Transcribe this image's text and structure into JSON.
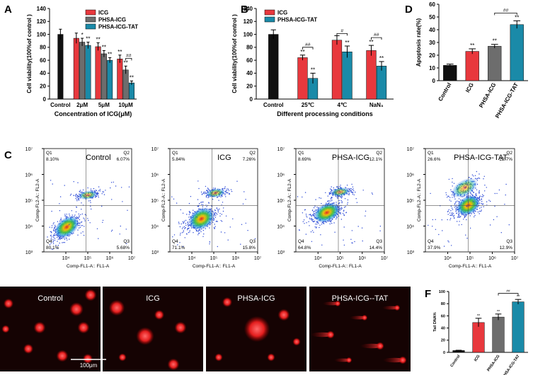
{
  "chart_data": [
    {
      "type": "bar",
      "panel_label": "A",
      "y_label": "Cell viability(100%of control )",
      "x_label": "Concentration of ICG(μM)",
      "categories": [
        "Control",
        "2μM",
        "5μM",
        "10μM"
      ],
      "series": [
        {
          "color": "#111111",
          "values": [
            100,
            null,
            null,
            null
          ],
          "errors": [
            8,
            null,
            null,
            null
          ]
        },
        {
          "name": "ICG",
          "color": "#e8383d",
          "values": [
            null,
            94,
            81,
            62
          ],
          "errors": [
            null,
            8,
            6,
            6
          ],
          "sig": [
            null,
            null,
            "**",
            "**"
          ]
        },
        {
          "name": "PHSA-ICG",
          "color": "#6d6d6d",
          "values": [
            null,
            88,
            70,
            45
          ],
          "errors": [
            null,
            6,
            5,
            6
          ],
          "sig": [
            null,
            "*",
            "**",
            "**"
          ]
        },
        {
          "name": "PHSA-ICG-TAT",
          "color": "#1a8aa8",
          "values": [
            null,
            83,
            60,
            25
          ],
          "errors": [
            null,
            5,
            4,
            3
          ],
          "sig": [
            null,
            "**",
            "**",
            "**"
          ]
        }
      ],
      "ylim": [
        0,
        140
      ],
      "yticks": [
        0,
        20,
        40,
        60,
        80,
        100,
        120,
        140
      ],
      "legend": "upper right",
      "brackets": [
        {
          "label": "##"
        }
      ]
    },
    {
      "type": "bar",
      "panel_label": "B",
      "y_label": "Cell viability(100%of control )",
      "x_label": "Different processing conditions",
      "categories": [
        "Control",
        "25℃",
        "4℃",
        "NaN₃"
      ],
      "series": [
        {
          "color": "#111111",
          "values": [
            100,
            null,
            null,
            null
          ],
          "errors": [
            7,
            null,
            null,
            null
          ]
        },
        {
          "name": "ICG",
          "color": "#e8383d",
          "values": [
            null,
            64,
            91,
            75
          ],
          "errors": [
            null,
            4,
            7,
            8
          ],
          "sig": [
            null,
            "**",
            null,
            "**"
          ]
        },
        {
          "name": "PHSA-ICG-TAT",
          "color": "#1a8aa8",
          "values": [
            null,
            32,
            73,
            51
          ],
          "errors": [
            null,
            8,
            9,
            7
          ],
          "sig": [
            null,
            "**",
            "**",
            "**"
          ]
        }
      ],
      "ylim": [
        0,
        140
      ],
      "yticks": [
        0,
        20,
        40,
        60,
        80,
        100,
        120,
        140
      ],
      "legend": "upper left",
      "brackets": [
        {
          "label": "##"
        },
        {
          "label": "#"
        },
        {
          "label": "##"
        }
      ]
    },
    {
      "type": "bar",
      "panel_label": "D",
      "y_label": "Apoptosis rate(%)",
      "categories": [
        "Control",
        "ICG",
        "PHSA-ICG",
        "PHSA-ICG-TAT"
      ],
      "values": [
        12,
        23,
        27,
        44
      ],
      "errors": [
        1,
        2,
        1.5,
        3
      ],
      "sig": [
        null,
        "**",
        "**",
        "**"
      ],
      "colors": [
        "#111111",
        "#e8383d",
        "#6d6d6d",
        "#1a8aa8"
      ],
      "ylim": [
        0,
        60
      ],
      "yticks": [
        0,
        10,
        20,
        30,
        40,
        50,
        60
      ],
      "brackets": [
        {
          "label": "##"
        }
      ]
    },
    {
      "type": "flow",
      "panel_label": "C",
      "title": "Control",
      "x_label": "Comp-FL1-A:: FL1-A",
      "y_label": "Comp-FL2-A:: FL2-A",
      "log": true,
      "xlim": [
        1000,
        10000000
      ],
      "ylim": [
        1000,
        10000000
      ],
      "xticks": [
        {
          "value": 10000,
          "label": "10⁴"
        },
        {
          "value": 100000,
          "label": "10⁵"
        },
        {
          "value": 1000000,
          "label": "10⁶"
        },
        {
          "value": 10000000,
          "label": "10⁷"
        }
      ],
      "yticks": [
        {
          "value": 1000,
          "label": "10³"
        },
        {
          "value": 10000,
          "label": "10⁴"
        },
        {
          "value": 100000,
          "label": "10⁵"
        },
        {
          "value": 1000000,
          "label": "10⁶"
        },
        {
          "value": 10000000,
          "label": "10⁷"
        }
      ],
      "quadrants": [
        {
          "name": "Q1",
          "text": "8.10%"
        },
        {
          "name": "Q2",
          "text": "6.07%"
        },
        {
          "name": "Q3",
          "text": "5.68%"
        },
        {
          "name": "Q4",
          "text": "80.1%"
        }
      ]
    },
    {
      "type": "flow",
      "title": "ICG",
      "x_label": "Comp-FL1-A:: FL1-A",
      "y_label": "Comp-FL2-A:: FL2-A",
      "log": true,
      "xlim": [
        1000,
        10000000
      ],
      "ylim": [
        1000,
        10000000
      ],
      "xticks": [
        {
          "value": 10000,
          "label": "10⁴"
        },
        {
          "value": 100000,
          "label": "10⁵"
        },
        {
          "value": 1000000,
          "label": "10⁶"
        },
        {
          "value": 10000000,
          "label": "10⁷"
        }
      ],
      "yticks": [
        {
          "value": 1000,
          "label": "10³"
        },
        {
          "value": 10000,
          "label": "10⁴"
        },
        {
          "value": 100000,
          "label": "10⁵"
        },
        {
          "value": 1000000,
          "label": "10⁶"
        },
        {
          "value": 10000000,
          "label": "10⁷"
        }
      ],
      "quadrants": [
        {
          "name": "Q1",
          "text": "5.84%"
        },
        {
          "name": "Q2",
          "text": "7.26%"
        },
        {
          "name": "Q3",
          "text": "15.8%"
        },
        {
          "name": "Q4",
          "text": "71.1%"
        }
      ]
    },
    {
      "type": "flow",
      "title": "PHSA-ICG",
      "x_label": "Comp-FL1-A:: FL1-A",
      "y_label": "Comp-FL2-A:: FL2-A",
      "log": true,
      "xlim": [
        1000,
        10000000
      ],
      "ylim": [
        1000,
        10000000
      ],
      "xticks": [
        {
          "value": 10000,
          "label": "10⁴"
        },
        {
          "value": 100000,
          "label": "10⁵"
        },
        {
          "value": 1000000,
          "label": "10⁶"
        },
        {
          "value": 10000000,
          "label": "10⁷"
        }
      ],
      "yticks": [
        {
          "value": 1000,
          "label": "10³"
        },
        {
          "value": 10000,
          "label": "10⁴"
        },
        {
          "value": 100000,
          "label": "10⁵"
        },
        {
          "value": 1000000,
          "label": "10⁶"
        },
        {
          "value": 10000000,
          "label": "10⁷"
        }
      ],
      "quadrants": [
        {
          "name": "Q1",
          "text": "8.69%"
        },
        {
          "name": "Q2",
          "text": "12.1%"
        },
        {
          "name": "Q3",
          "text": "14.4%"
        },
        {
          "name": "Q4",
          "text": "64.8%"
        }
      ]
    },
    {
      "type": "flow",
      "title": "PHSA-ICG-TAT",
      "x_label": "Comp-FL1-A:: FL1-A",
      "y_label": "Comp-FL2-A:: FL2-A",
      "log": true,
      "xlim": [
        1000,
        10000000
      ],
      "ylim": [
        1000,
        10000000
      ],
      "xticks": [
        {
          "value": 10000,
          "label": "10⁴"
        },
        {
          "value": 100000,
          "label": "10⁵"
        },
        {
          "value": 1000000,
          "label": "10⁶"
        },
        {
          "value": 10000000,
          "label": "10⁷"
        }
      ],
      "yticks": [
        {
          "value": 1000,
          "label": "10³"
        },
        {
          "value": 10000,
          "label": "10⁴"
        },
        {
          "value": 100000,
          "label": "10⁵"
        },
        {
          "value": 1000000,
          "label": "10⁶"
        },
        {
          "value": 10000000,
          "label": "10⁷"
        }
      ],
      "quadrants": [
        {
          "name": "Q1",
          "text": "26.6%"
        },
        {
          "name": "Q2",
          "text": "22.7%"
        },
        {
          "name": "Q3",
          "text": "12.9%"
        },
        {
          "name": "Q4",
          "text": "37.9%"
        }
      ]
    },
    {
      "type": "bar",
      "panel_label": "F",
      "y_label": "Tail DNA%",
      "categories": [
        "Control",
        "ICG",
        "PHSA-ICG",
        "PHSA-ICG-TAT"
      ],
      "values": [
        3,
        49,
        58,
        83
      ],
      "errors": [
        0.5,
        7,
        5,
        4
      ],
      "sig": [
        null,
        "**",
        "**",
        "**"
      ],
      "colors": [
        "#111111",
        "#e8383d",
        "#6d6d6d",
        "#1a8aa8"
      ],
      "ylim": [
        0,
        100
      ],
      "yticks": [
        0,
        20,
        40,
        60,
        80,
        100
      ],
      "brackets": [
        {
          "label": "##"
        }
      ]
    }
  ],
  "figure_e": {
    "panel_label": "E",
    "images": [
      {
        "label": "Control"
      },
      {
        "label": "ICG"
      },
      {
        "label": "PHSA-ICG"
      },
      {
        "label": "PHSA-ICG--TAT"
      }
    ],
    "scale_bar": "100μm"
  }
}
